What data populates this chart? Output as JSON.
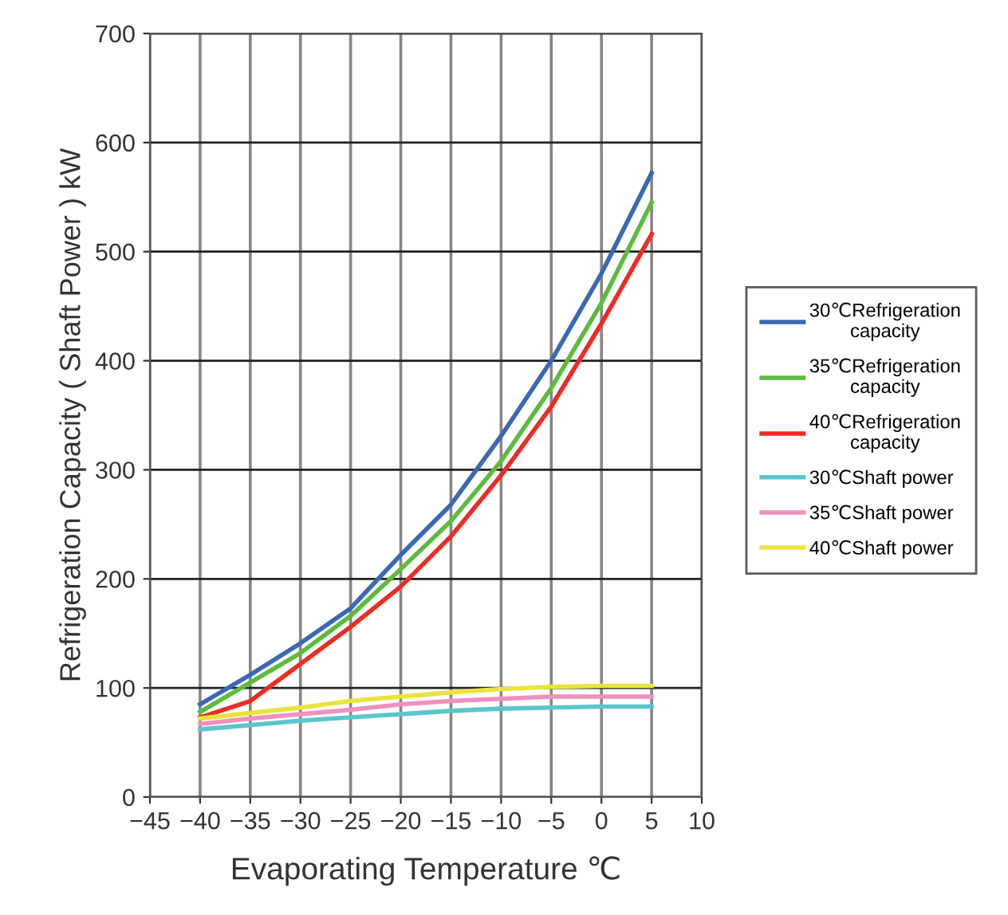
{
  "chart_data": {
    "type": "line",
    "xlabel": "Evaporating Temperature ℃",
    "ylabel": "Refrigeration Capacity ( Shaft Power ) kW",
    "x": [
      -40,
      -35,
      -30,
      -25,
      -20,
      -15,
      -10,
      -5,
      0,
      5
    ],
    "xlim": [
      -45,
      10
    ],
    "xticks": [
      -45,
      -40,
      -35,
      -30,
      -25,
      -20,
      -15,
      -10,
      -5,
      0,
      5,
      10
    ],
    "ylim": [
      0,
      700
    ],
    "yticks": [
      0,
      100,
      200,
      300,
      400,
      500,
      600,
      700
    ],
    "grid": true,
    "legend": "right",
    "marker": "none",
    "line_style": "solid",
    "series": [
      {
        "name": "30℃Refrigeration\ncapacity",
        "color": "#3a68b4",
        "values": [
          85,
          112,
          141,
          173,
          222,
          268,
          331,
          400,
          480,
          572
        ]
      },
      {
        "name": "35℃Refrigeration\ncapacity",
        "color": "#5cbb3c",
        "values": [
          78,
          105,
          132,
          166,
          209,
          253,
          308,
          375,
          453,
          545
        ]
      },
      {
        "name": "40℃Refrigeration\ncapacity",
        "color": "#ee2b24",
        "values": [
          73,
          88,
          122,
          156,
          193,
          239,
          295,
          358,
          434,
          516
        ]
      },
      {
        "name": "30℃Shaft power",
        "color": "#5bc5cf",
        "values": [
          62,
          66,
          70,
          73,
          76,
          79,
          81,
          82,
          83,
          83
        ]
      },
      {
        "name": "35℃Shaft power",
        "color": "#ef90bf",
        "values": [
          67,
          72,
          76,
          80,
          85,
          88,
          90,
          92,
          92,
          92
        ]
      },
      {
        "name": "40℃Shaft power",
        "color": "#e8e43c",
        "values": [
          72,
          77,
          82,
          88,
          92,
          96,
          99,
          101,
          102,
          102
        ]
      }
    ]
  }
}
